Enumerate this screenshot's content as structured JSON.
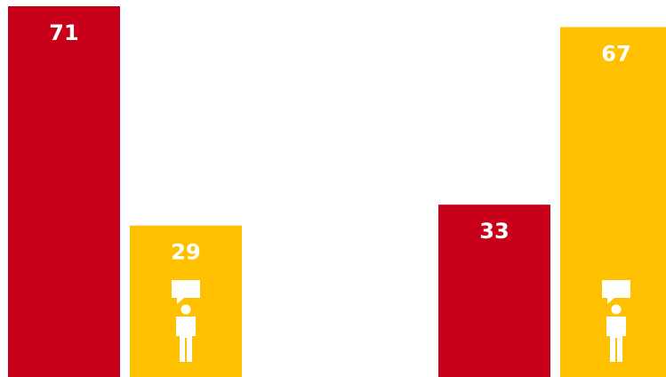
{
  "chart_data": {
    "type": "bar",
    "categories": [
      null,
      null
    ],
    "series": [
      {
        "color": "#c8001a",
        "values": [
          71,
          33
        ]
      },
      {
        "color": "#ffc000",
        "values": [
          29,
          67
        ]
      }
    ],
    "ylim": [
      0,
      71
    ]
  }
}
